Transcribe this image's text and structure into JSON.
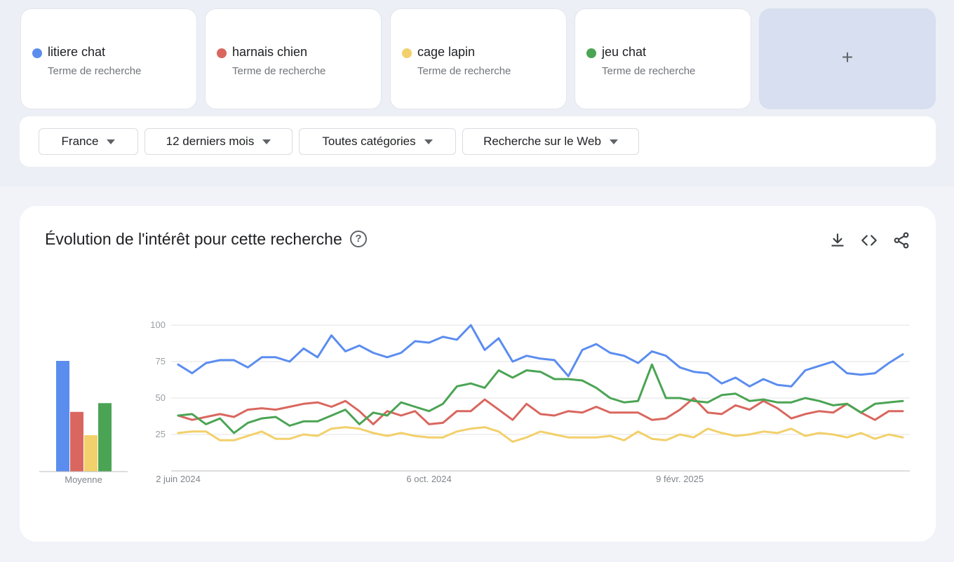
{
  "terms": [
    {
      "name": "litiere chat",
      "subtitle": "Terme de recherche",
      "color": "#5b8def"
    },
    {
      "name": "harnais chien",
      "subtitle": "Terme de recherche",
      "color": "#d9675f"
    },
    {
      "name": "cage lapin",
      "subtitle": "Terme de recherche",
      "color": "#f2d06b"
    },
    {
      "name": "jeu chat",
      "subtitle": "Terme de recherche",
      "color": "#4ba454"
    }
  ],
  "add_term": {
    "label": "+"
  },
  "filters": {
    "region": "France",
    "period": "12 derniers mois",
    "category": "Toutes catégories",
    "search_type": "Recherche sur le Web"
  },
  "chart_card": {
    "title": "Évolution de l'intérêt pour cette recherche",
    "help": "?",
    "icons": [
      "download-icon",
      "embed-code-icon",
      "share-icon"
    ]
  },
  "chart_data": {
    "type": "line",
    "yticks": [
      25,
      50,
      75,
      100
    ],
    "ylim": [
      0,
      100
    ],
    "x_labels": [
      "2 juin 2024",
      "6 oct. 2024",
      "9 févr. 2025"
    ],
    "x_label_index": [
      0,
      18,
      36
    ],
    "average_label": "Moyenne",
    "averages": [
      76,
      41,
      25,
      47
    ],
    "grid": true,
    "series": [
      {
        "name": "litiere chat",
        "color": "#5b8def",
        "values": [
          73,
          67,
          74,
          76,
          76,
          71,
          78,
          78,
          75,
          84,
          78,
          93,
          82,
          86,
          81,
          78,
          81,
          89,
          88,
          92,
          90,
          100,
          83,
          91,
          75,
          79,
          77,
          76,
          65,
          83,
          87,
          81,
          79,
          74,
          82,
          79,
          71,
          68,
          67,
          60,
          64,
          58,
          63,
          59,
          58,
          69,
          72,
          75,
          67,
          66,
          67,
          74,
          80
        ]
      },
      {
        "name": "harnais chien",
        "color": "#d9675f",
        "values": [
          38,
          35,
          37,
          39,
          37,
          42,
          43,
          42,
          44,
          46,
          47,
          44,
          48,
          41,
          32,
          41,
          38,
          41,
          32,
          33,
          41,
          41,
          49,
          42,
          35,
          46,
          39,
          38,
          41,
          40,
          44,
          40,
          40,
          40,
          35,
          36,
          42,
          50,
          40,
          39,
          45,
          42,
          48,
          43,
          36,
          39,
          41,
          40,
          46,
          40,
          35,
          41,
          41
        ]
      },
      {
        "name": "cage lapin",
        "color": "#f2d06b",
        "values": [
          26,
          27,
          27,
          21,
          21,
          24,
          27,
          22,
          22,
          25,
          24,
          29,
          30,
          29,
          26,
          24,
          26,
          24,
          23,
          23,
          27,
          29,
          30,
          27,
          20,
          23,
          27,
          25,
          23,
          23,
          23,
          24,
          21,
          27,
          22,
          21,
          25,
          23,
          29,
          26,
          24,
          25,
          27,
          26,
          29,
          24,
          26,
          25,
          23,
          26,
          22,
          25,
          23
        ]
      },
      {
        "name": "jeu chat",
        "color": "#4ba454",
        "values": [
          38,
          39,
          32,
          36,
          26,
          33,
          36,
          37,
          31,
          34,
          34,
          38,
          42,
          32,
          40,
          38,
          47,
          44,
          41,
          46,
          58,
          60,
          57,
          69,
          64,
          69,
          68,
          63,
          63,
          62,
          57,
          50,
          47,
          48,
          73,
          50,
          50,
          48,
          47,
          52,
          53,
          48,
          49,
          47,
          47,
          50,
          48,
          45,
          46,
          40,
          46,
          47,
          48
        ]
      }
    ]
  }
}
